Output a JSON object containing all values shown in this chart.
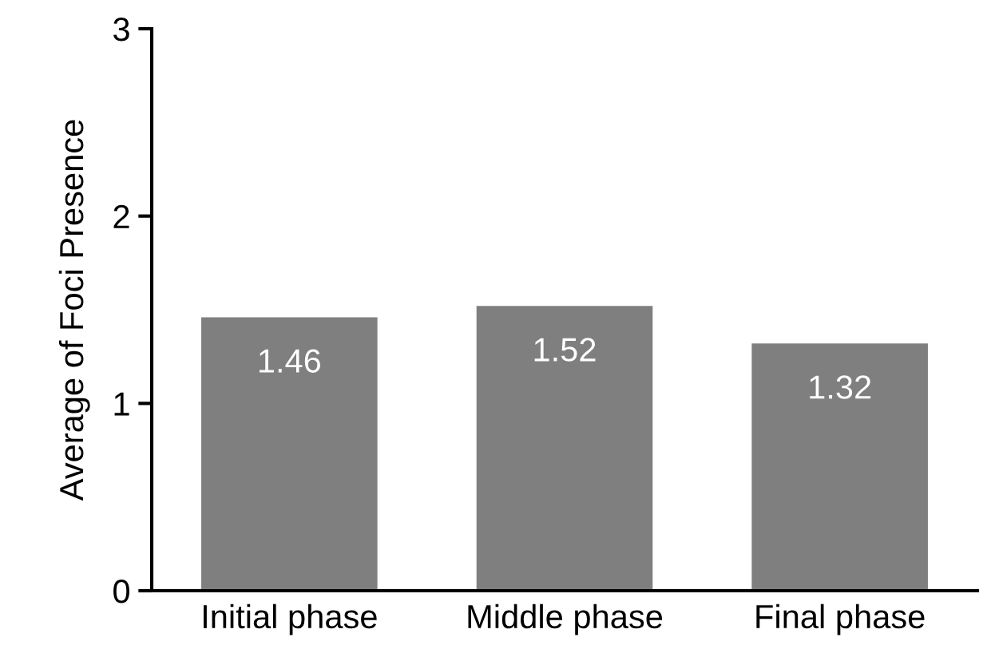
{
  "chart_data": {
    "type": "bar",
    "ylabel": "Average of Foci Presence",
    "categories": [
      "Initial phase",
      "Middle phase",
      "Final phase"
    ],
    "values": [
      1.46,
      1.52,
      1.32
    ],
    "color": "#7f7f7f",
    "ylim": [
      0,
      3
    ],
    "yticks": [
      0,
      1,
      2,
      3
    ],
    "grid": false,
    "data_labels": true
  }
}
